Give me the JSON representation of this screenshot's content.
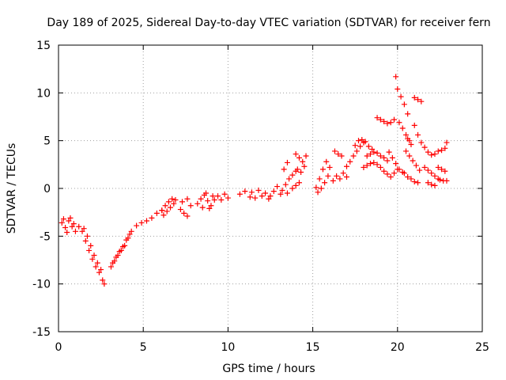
{
  "chart_data": {
    "type": "scatter",
    "title": "Day 189 of 2025, Sidereal Day-to-day VTEC variation (SDTVAR) for receiver fern",
    "xlabel": "GPS time / hours",
    "ylabel": "SDTVAR / TECUs",
    "xlim": [
      0,
      25
    ],
    "ylim": [
      -15,
      15
    ],
    "xticks": [
      0,
      5,
      10,
      15,
      20,
      25
    ],
    "yticks": [
      -15,
      -10,
      -5,
      0,
      5,
      10,
      15
    ],
    "xtick_labels": [
      "0",
      "5",
      "10",
      "15",
      "20",
      "25"
    ],
    "ytick_labels": [
      "-15",
      "-10",
      "-5",
      "0",
      "5",
      "10",
      "15"
    ],
    "grid": true,
    "legend": "none",
    "marker": "+",
    "series": [
      {
        "name": "SDTVAR",
        "color": "#ff0000",
        "segments": [
          {
            "x": [
              0.2,
              0.4,
              0.6,
              0.8,
              1.0
            ],
            "y": [
              -3.6,
              -4.1,
              -3.4,
              -4.0,
              -4.5
            ]
          },
          {
            "x": [
              0.3,
              0.5,
              0.7,
              0.9
            ],
            "y": [
              -3.2,
              -4.6,
              -3.1,
              -3.7
            ]
          },
          {
            "x": [
              1.2,
              1.4,
              1.6,
              1.8,
              2.0,
              2.2,
              2.4,
              2.6,
              2.7
            ],
            "y": [
              -4.0,
              -4.5,
              -5.5,
              -6.5,
              -7.4,
              -8.2,
              -8.8,
              -9.6,
              -10.0
            ]
          },
          {
            "x": [
              1.5,
              1.7,
              1.9,
              2.1,
              2.3,
              2.5
            ],
            "y": [
              -4.2,
              -5.0,
              -6.0,
              -7.0,
              -7.8,
              -8.5
            ]
          },
          {
            "x": [
              3.1,
              3.3,
              3.5,
              3.7,
              3.9,
              4.1,
              4.3
            ],
            "y": [
              -8.2,
              -7.6,
              -7.0,
              -6.5,
              -6.0,
              -5.2,
              -4.5
            ]
          },
          {
            "x": [
              3.2,
              3.4,
              3.6,
              3.8,
              4.0,
              4.2
            ],
            "y": [
              -7.8,
              -7.2,
              -6.6,
              -6.1,
              -5.4,
              -4.8
            ]
          },
          {
            "x": [
              4.6,
              4.9,
              5.2,
              5.5,
              5.8,
              6.1
            ],
            "y": [
              -3.9,
              -3.6,
              -3.4,
              -3.1,
              -2.6,
              -2.3
            ]
          },
          {
            "x": [
              6.1,
              6.3,
              6.5,
              6.7,
              6.9
            ],
            "y": [
              -2.3,
              -1.8,
              -1.4,
              -1.1,
              -1.2
            ]
          },
          {
            "x": [
              6.2,
              6.4,
              6.6,
              6.8
            ],
            "y": [
              -2.8,
              -2.4,
              -2.0,
              -1.6
            ]
          },
          {
            "x": [
              7.2,
              7.4,
              7.6,
              7.8
            ],
            "y": [
              -2.2,
              -2.6,
              -2.9,
              -1.8
            ]
          },
          {
            "x": [
              7.3,
              7.6
            ],
            "y": [
              -1.4,
              -1.1
            ]
          },
          {
            "x": [
              8.2,
              8.4,
              8.6,
              8.8,
              9.0,
              9.2
            ],
            "y": [
              -1.6,
              -1.1,
              -0.7,
              -1.3,
              -1.8,
              -1.2
            ]
          },
          {
            "x": [
              8.5,
              8.7,
              8.9,
              9.1
            ],
            "y": [
              -2.0,
              -0.5,
              -2.1,
              -0.8
            ]
          },
          {
            "x": [
              9.4,
              9.6,
              9.8,
              10.0
            ],
            "y": [
              -0.8,
              -1.2,
              -0.6,
              -1.0
            ]
          },
          {
            "x": [
              10.7,
              11.0,
              11.3
            ],
            "y": [
              -0.6,
              -0.3,
              -0.9
            ]
          },
          {
            "x": [
              11.4,
              11.6,
              11.8,
              12.0,
              12.2,
              12.4
            ],
            "y": [
              -0.4,
              -1.0,
              -0.2,
              -0.8,
              -0.5,
              -1.1
            ]
          },
          {
            "x": [
              12.5,
              12.7,
              12.9,
              13.1
            ],
            "y": [
              -0.8,
              -0.3,
              0.2,
              -0.6
            ]
          },
          {
            "x": [
              13.2,
              13.4,
              13.6,
              13.8,
              14.0
            ],
            "y": [
              -0.2,
              0.4,
              1.0,
              1.4,
              1.8
            ]
          },
          {
            "x": [
              13.5,
              13.8,
              14.0,
              14.2
            ],
            "y": [
              -0.5,
              0.0,
              0.3,
              0.6
            ]
          },
          {
            "x": [
              13.3,
              13.5
            ],
            "y": [
              2.0,
              2.7
            ]
          },
          {
            "x": [
              14.0,
              14.2,
              14.4,
              14.6
            ],
            "y": [
              3.6,
              3.2,
              2.8,
              3.4
            ]
          },
          {
            "x": [
              14.1,
              14.3,
              14.5
            ],
            "y": [
              2.0,
              1.7,
              2.3
            ]
          },
          {
            "x": [
              15.2,
              15.4,
              15.6,
              15.8,
              16.0
            ],
            "y": [
              0.1,
              1.0,
              2.0,
              2.8,
              2.2
            ]
          },
          {
            "x": [
              15.3,
              15.5,
              15.7,
              15.9
            ],
            "y": [
              -0.4,
              0.0,
              0.6,
              1.3
            ]
          },
          {
            "x": [
              16.3,
              16.5,
              16.7
            ],
            "y": [
              3.9,
              3.6,
              3.4
            ]
          },
          {
            "x": [
              16.2,
              16.4,
              16.6,
              16.8,
              17.0
            ],
            "y": [
              0.8,
              1.3,
              1.0,
              1.6,
              1.2
            ]
          },
          {
            "x": [
              17.0,
              17.2,
              17.4,
              17.6,
              17.8,
              18.0
            ],
            "y": [
              2.3,
              2.8,
              3.4,
              3.9,
              4.4,
              4.8
            ]
          },
          {
            "x": [
              17.5,
              17.7,
              17.9,
              18.1,
              18.3,
              18.5
            ],
            "y": [
              4.5,
              5.0,
              5.1,
              4.9,
              4.4,
              4.1
            ]
          },
          {
            "x": [
              18.0,
              18.2,
              18.4,
              18.6,
              18.8,
              19.0
            ],
            "y": [
              2.2,
              2.4,
              2.6,
              2.7,
              2.5,
              2.2
            ]
          },
          {
            "x": [
              18.2,
              18.4,
              18.6,
              18.8,
              19.0,
              19.2,
              19.4
            ],
            "y": [
              3.4,
              3.6,
              3.8,
              3.7,
              3.4,
              3.2,
              2.9
            ]
          },
          {
            "x": [
              18.8,
              19.0,
              19.2,
              19.4,
              19.6,
              19.8
            ],
            "y": [
              7.4,
              7.2,
              7.0,
              6.8,
              6.9,
              7.2
            ]
          },
          {
            "x": [
              19.2,
              19.4,
              19.6,
              19.8,
              20.0
            ],
            "y": [
              1.8,
              1.5,
              1.2,
              1.6,
              2.0
            ]
          },
          {
            "x": [
              19.5,
              19.7,
              19.9,
              20.1,
              20.3
            ],
            "y": [
              3.8,
              3.2,
              2.6,
              2.0,
              1.7
            ]
          },
          {
            "x": [
              19.9
            ],
            "y": [
              11.7
            ]
          },
          {
            "x": [
              20.0,
              20.2,
              20.4,
              20.6
            ],
            "y": [
              10.4,
              9.6,
              8.8,
              7.8
            ]
          },
          {
            "x": [
              20.1,
              20.3,
              20.5,
              20.7
            ],
            "y": [
              6.9,
              6.3,
              5.6,
              5.0
            ]
          },
          {
            "x": [
              20.4,
              20.6,
              20.8,
              21.0,
              21.2
            ],
            "y": [
              1.6,
              1.2,
              1.0,
              0.7,
              0.6
            ]
          },
          {
            "x": [
              20.5,
              20.7,
              20.9,
              21.1,
              21.3
            ],
            "y": [
              3.9,
              3.4,
              2.9,
              2.4,
              1.9
            ]
          },
          {
            "x": [
              20.6,
              20.8
            ],
            "y": [
              5.2,
              4.6
            ]
          },
          {
            "x": [
              21.0,
              21.2,
              21.4
            ],
            "y": [
              9.5,
              9.3,
              9.1
            ]
          },
          {
            "x": [
              21.0,
              21.2,
              21.4,
              21.6,
              21.8,
              22.0
            ],
            "y": [
              6.6,
              5.6,
              4.8,
              4.3,
              3.8,
              3.5
            ]
          },
          {
            "x": [
              21.6,
              21.8,
              22.0,
              22.2,
              22.4
            ],
            "y": [
              2.2,
              1.9,
              1.6,
              1.3,
              1.0
            ]
          },
          {
            "x": [
              21.8,
              22.0,
              22.2
            ],
            "y": [
              0.6,
              0.4,
              0.3
            ]
          },
          {
            "x": [
              22.2,
              22.4,
              22.6,
              22.8
            ],
            "y": [
              3.6,
              3.9,
              4.0,
              4.2
            ]
          },
          {
            "x": [
              22.4,
              22.6,
              22.8
            ],
            "y": [
              2.2,
              2.0,
              1.8
            ]
          },
          {
            "x": [
              22.5,
              22.7,
              22.9
            ],
            "y": [
              0.9,
              0.8,
              0.8
            ]
          },
          {
            "x": [
              22.9
            ],
            "y": [
              4.8
            ]
          }
        ]
      }
    ]
  }
}
